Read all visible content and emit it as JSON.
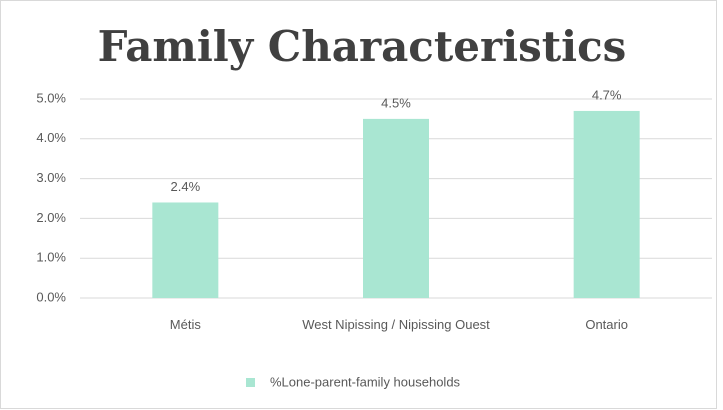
{
  "chart_data": {
    "type": "bar",
    "title": "Family Characteristics",
    "categories": [
      "Métis",
      "West Nipissing / Nipissing Ouest",
      "Ontario"
    ],
    "series": [
      {
        "name": "%Lone-parent-family households",
        "color": "#a9e6d2",
        "values": [
          2.4,
          4.5,
          4.7
        ],
        "value_labels": [
          "2.4%",
          "4.5%",
          "4.7%"
        ]
      }
    ],
    "ylim": [
      0,
      5
    ],
    "yticks": [
      {
        "value": 0,
        "label": "0.0%"
      },
      {
        "value": 1,
        "label": "1.0%"
      },
      {
        "value": 2,
        "label": "2.0%"
      },
      {
        "value": 3,
        "label": "3.0%"
      },
      {
        "value": 4,
        "label": "4.0%"
      },
      {
        "value": 5,
        "label": "5.0%"
      }
    ],
    "grid": true,
    "legend": "bottom"
  }
}
